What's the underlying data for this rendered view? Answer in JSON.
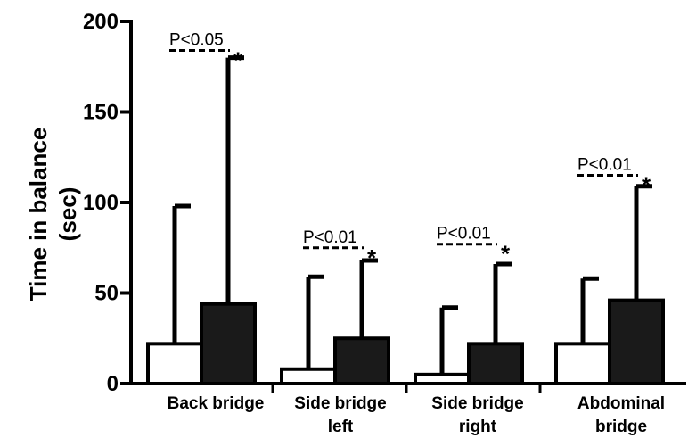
{
  "chart_data": {
    "type": "bar",
    "ylabel_lines": [
      "Time in balance",
      "(sec)"
    ],
    "ylim": [
      0,
      200
    ],
    "yticks": [
      0,
      50,
      100,
      150,
      200
    ],
    "grid": false,
    "categories": [
      [
        "Back bridge"
      ],
      [
        "Side bridge",
        "left"
      ],
      [
        "Side bridge",
        "right"
      ],
      [
        "Abdominal",
        "bridge"
      ]
    ],
    "series": [
      {
        "fill": "#ffffff",
        "values": [
          22,
          8,
          5,
          22
        ],
        "error_upper": [
          98,
          59,
          42,
          58
        ]
      },
      {
        "fill": "#1a1a1a",
        "values": [
          44,
          25,
          22,
          46
        ],
        "error_upper": [
          180,
          68,
          66,
          109
        ]
      }
    ],
    "annotations": [
      {
        "category": 0,
        "text": "P<0.05",
        "marker": "*",
        "y": 184
      },
      {
        "category": 1,
        "text": "P<0.01",
        "marker": "*",
        "y": 75
      },
      {
        "category": 2,
        "text": "P<0.01",
        "marker": "*",
        "y": 77
      },
      {
        "category": 3,
        "text": "P<0.01",
        "marker": "*",
        "y": 115
      }
    ]
  }
}
